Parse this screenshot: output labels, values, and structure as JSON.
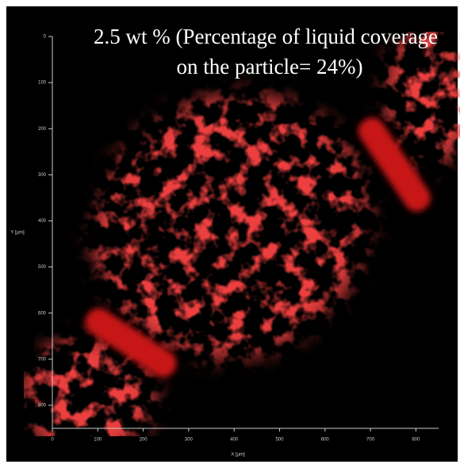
{
  "chart_data": {
    "type": "image",
    "title_lines": [
      "2.5 wt % (Percentage of liquid coverage",
      "on the particle= 24%)"
    ],
    "x_label": "X [µm]",
    "y_label": "Y [µm]",
    "xlim": [
      0,
      850
    ],
    "ylim": [
      0,
      850
    ],
    "xticks": [
      0,
      100,
      200,
      300,
      400,
      500,
      600,
      700,
      800
    ],
    "yticks": [
      0,
      100,
      200,
      300,
      400,
      500,
      600,
      700,
      800
    ],
    "y_inverted": true,
    "grid": false
  }
}
